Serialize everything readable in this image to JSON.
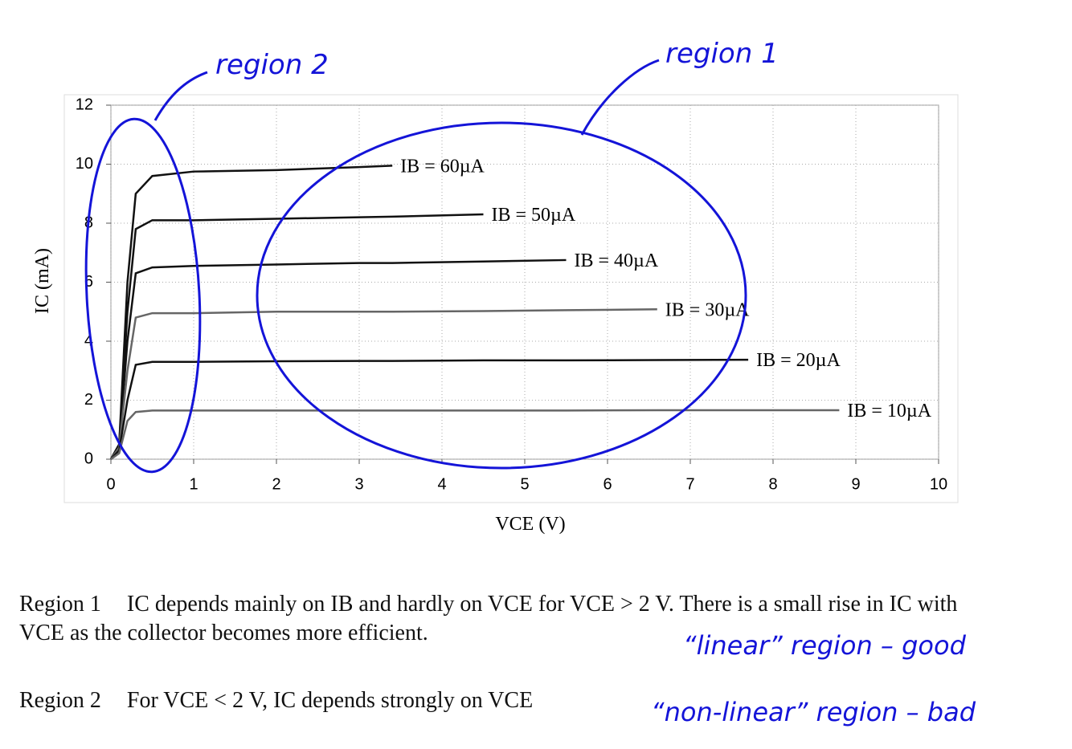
{
  "chart_data": {
    "type": "line",
    "xlabel": "VCE (V)",
    "ylabel": "IC (mA)",
    "x": [
      0,
      0.1,
      0.2,
      0.3,
      0.5,
      1,
      2,
      3,
      3.4,
      4.5,
      5.5,
      6.6,
      7.7,
      8.8
    ],
    "series": [
      {
        "name": "IB = 60µA",
        "color": "#111111",
        "values": [
          0,
          0.5,
          6.0,
          9.0,
          9.6,
          9.75,
          9.8,
          9.9,
          9.95,
          null,
          null,
          null,
          null,
          null
        ]
      },
      {
        "name": "IB = 50µA",
        "color": "#111111",
        "values": [
          0,
          0.5,
          5.0,
          7.8,
          8.1,
          8.1,
          8.15,
          8.2,
          8.22,
          8.3,
          null,
          null,
          null,
          null
        ]
      },
      {
        "name": "IB = 40µA",
        "color": "#111111",
        "values": [
          0,
          0.5,
          4.0,
          6.3,
          6.5,
          6.55,
          6.6,
          6.65,
          6.65,
          6.7,
          6.75,
          null,
          null,
          null
        ]
      },
      {
        "name": "IB = 30µA",
        "color": "#666666",
        "values": [
          0,
          0.4,
          3.0,
          4.8,
          4.95,
          4.95,
          5.0,
          5.0,
          5.0,
          5.02,
          5.05,
          5.08,
          null,
          null
        ]
      },
      {
        "name": "IB = 20µA",
        "color": "#111111",
        "values": [
          0,
          0.3,
          2.0,
          3.2,
          3.3,
          3.3,
          3.32,
          3.33,
          3.33,
          3.35,
          3.35,
          3.36,
          3.37,
          null
        ]
      },
      {
        "name": "IB = 10µA",
        "color": "#666666",
        "values": [
          0,
          0.2,
          1.3,
          1.6,
          1.65,
          1.65,
          1.65,
          1.65,
          1.65,
          1.65,
          1.65,
          1.66,
          1.66,
          1.66
        ]
      }
    ],
    "xlim": [
      0,
      10
    ],
    "xticks": [
      0,
      1,
      2,
      3,
      4,
      5,
      6,
      7,
      8,
      9,
      10
    ],
    "ylim": [
      0,
      12
    ],
    "yticks": [
      0,
      2,
      4,
      6,
      8,
      10,
      12
    ],
    "grid": true,
    "annotations": [
      "region 2",
      "region 1"
    ]
  },
  "text": [
    {
      "label": "Region 1",
      "body": "IC depends mainly on IB and hardly on VCE for VCE > 2 V. There is a small rise in IC with VCE as the collector becomes more efficient.",
      "note": "“linear” region – good"
    },
    {
      "label": "Region 2",
      "body": "For VCE < 2 V, IC depends strongly on VCE",
      "note": "“non-linear” region – bad"
    }
  ]
}
